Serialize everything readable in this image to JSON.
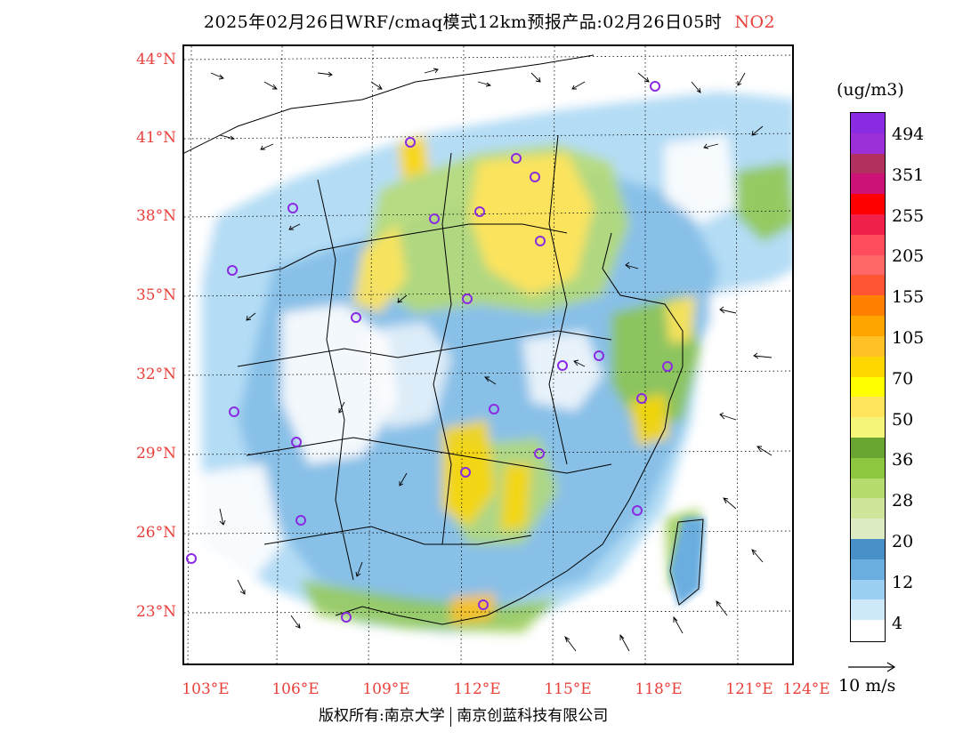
{
  "title": "2025年02月26日WRF/cmaq模式12km预报产品:02月26日05时",
  "species": "NO2",
  "lat_labels": [
    "44°N",
    "41°N",
    "38°N",
    "35°N",
    "32°N",
    "29°N",
    "26°N",
    "23°N"
  ],
  "lon_labels": [
    "103°E",
    "106°E",
    "109°E",
    "112°E",
    "115°E",
    "118°E",
    "121°E",
    "124°E"
  ],
  "colorbar": {
    "units": "(ug/m3)",
    "labels": [
      "494",
      "351",
      "255",
      "205",
      "155",
      "105",
      "70",
      "50",
      "36",
      "28",
      "20",
      "12",
      "4"
    ],
    "colors": [
      "#8a2be2",
      "#9b30d9",
      "#b03060",
      "#cc1177",
      "#ff0000",
      "#f0204a",
      "#ff4d5e",
      "#ff6666",
      "#ff5533",
      "#ff7f00",
      "#ffa500",
      "#ffc125",
      "#ffd700",
      "#ffff00",
      "#ffe45c",
      "#f5f57a",
      "#6aa532",
      "#8dc63f",
      "#b7dc6e",
      "#cfe69a",
      "#dcebc2",
      "#4a90c8",
      "#6aaee0",
      "#9bd0f2",
      "#cde8f8",
      "#ffffff"
    ]
  },
  "wind_legend": "10 m/s",
  "footer": {
    "left": "版权所有:南京大学",
    "right": "南京创蓝科技有限公司"
  }
}
